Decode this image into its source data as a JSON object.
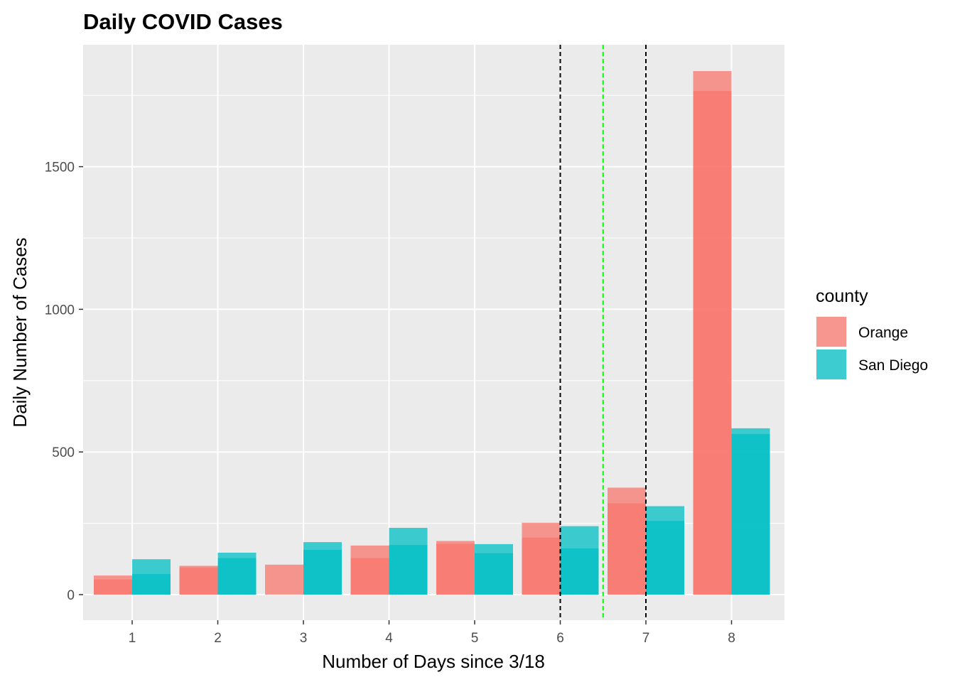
{
  "chart_data": {
    "type": "bar",
    "title": "Daily COVID Cases",
    "xlabel": "Number of Days since 3/18",
    "ylabel": "Daily Number of Cases",
    "categories": [
      "1",
      "2",
      "3",
      "4",
      "5",
      "6",
      "7",
      "8"
    ],
    "series": [
      {
        "name": "Orange",
        "color": "#F8766D",
        "values": [
          67,
          101,
          105,
          172,
          188,
          252,
          375,
          1835
        ],
        "overlay_values": [
          53,
          95,
          0,
          128,
          178,
          200,
          320,
          1765
        ]
      },
      {
        "name": "San Diego",
        "color": "#00BFC4",
        "values": [
          124,
          147,
          184,
          234,
          177,
          240,
          310,
          583
        ],
        "overlay_values": [
          72,
          128,
          157,
          174,
          145,
          162,
          258,
          563
        ]
      }
    ],
    "ylim": [
      -90,
      1930
    ],
    "yticks": [
      0,
      500,
      1000,
      1500
    ],
    "vlines": [
      {
        "x": 6,
        "color": "#000000",
        "style": "dashed"
      },
      {
        "x": 6.5,
        "color": "#00FF00",
        "style": "dashed"
      },
      {
        "x": 7,
        "color": "#000000",
        "style": "dashed"
      }
    ],
    "legend": {
      "title": "county",
      "position": "right"
    },
    "grid": true
  }
}
